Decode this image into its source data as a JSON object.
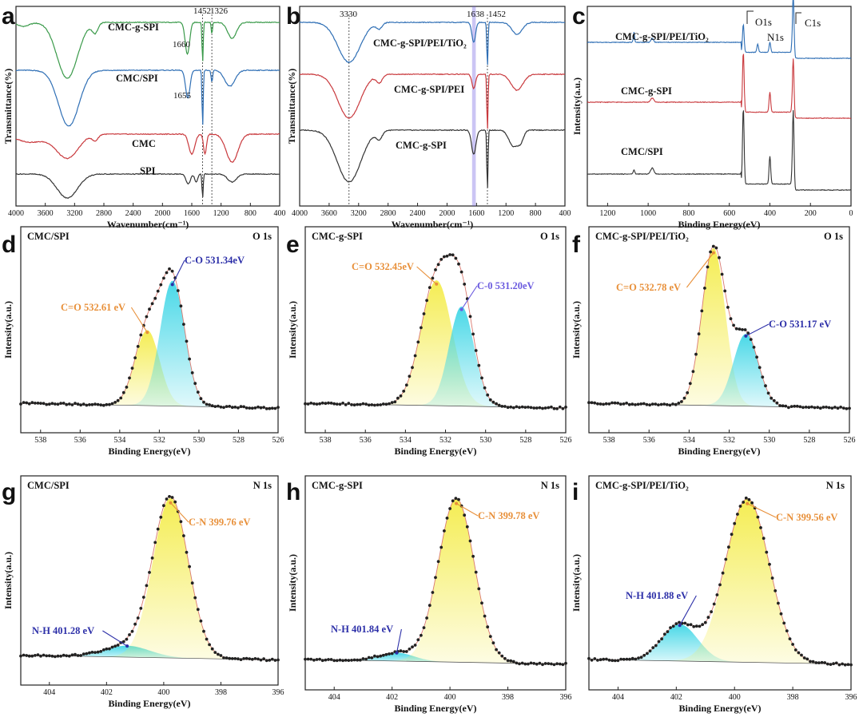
{
  "colors": {
    "green": "#3a9a4a",
    "blue": "#2f6fb5",
    "red": "#c9393d",
    "black": "#333333",
    "cyan": "#3fd6e6",
    "yellow": "#f4ec4a",
    "orange_text": "#e8903a",
    "blue_text": "#2c2fa8",
    "purple_band": "#6a5adf"
  },
  "chart_data": [
    {
      "panel": "a",
      "type": "line",
      "xlabel": "Wavenumber(cm⁻¹)",
      "ylabel": "Transmittance(%)",
      "xlim": [
        4000,
        400
      ],
      "xticks": [
        4000,
        3600,
        3200,
        2800,
        2400,
        2000,
        1600,
        1200,
        800,
        400
      ],
      "series": [
        {
          "name": "CMC-g-SPI",
          "color": "green",
          "base": 0.92
        },
        {
          "name": "CMC/SPI",
          "color": "blue",
          "base": 0.68
        },
        {
          "name": "CMC",
          "color": "red",
          "base": 0.36
        },
        {
          "name": "SPI",
          "color": "black",
          "base": 0.16
        }
      ],
      "vlines": [
        1452,
        1326
      ],
      "annotations": [
        {
          "text": "1452",
          "x": 1452
        },
        {
          "text": "1326",
          "x": 1326
        },
        {
          "text": "1660",
          "x": 1660
        },
        {
          "text": "1655",
          "x": 1655
        }
      ]
    },
    {
      "panel": "b",
      "type": "line",
      "xlabel": "Wavenumber(cm⁻¹)",
      "ylabel": "Transmittance(%)",
      "xlim": [
        4000,
        400
      ],
      "xticks": [
        4000,
        3600,
        3200,
        2800,
        2400,
        2000,
        1600,
        1200,
        800,
        400
      ],
      "series": [
        {
          "name": "CMC-g-SPI/PEI/TiO₂",
          "color": "blue",
          "base": 0.92
        },
        {
          "name": "CMC-g-SPI/PEI",
          "color": "red",
          "base": 0.66
        },
        {
          "name": "CMC-g-SPI",
          "color": "black",
          "base": 0.38
        }
      ],
      "vlines": [
        3330,
        1452
      ],
      "band": [
        1660,
        1610
      ],
      "annotations": [
        {
          "text": "3330",
          "x": 3330
        },
        {
          "text": "1638",
          "x": 1638
        },
        {
          "text": "1452",
          "x": 1452
        }
      ]
    },
    {
      "panel": "c",
      "type": "line",
      "xlabel": "Binding Energy(eV)",
      "ylabel": "Intensity(a.u.)",
      "xlim": [
        1300,
        0
      ],
      "xticks": [
        1200,
        1000,
        800,
        600,
        400,
        200,
        0
      ],
      "series": [
        {
          "name": "CMC-g-SPI/PEI/TiO₂",
          "color": "blue",
          "base": 0.82
        },
        {
          "name": "CMC-g-SPI",
          "color": "red",
          "base": 0.52
        },
        {
          "name": "CMC/SPI",
          "color": "black",
          "base": 0.16
        }
      ],
      "annotations": [
        {
          "text": "O1s",
          "x": 531
        },
        {
          "text": "N1s",
          "x": 400
        },
        {
          "text": "C1s",
          "x": 285
        }
      ]
    },
    {
      "panel": "d",
      "type": "line",
      "sample": "CMC/SPI",
      "core": "O 1s",
      "xlabel": "Binding Energy(eV)",
      "ylabel": "Intensity(a.u.)",
      "xlim": [
        539,
        526
      ],
      "xticks": [
        538,
        536,
        534,
        532,
        530,
        528,
        526
      ],
      "peaks": [
        {
          "label": "C=O 532.61 eV",
          "center": 532.61,
          "height": 0.47,
          "width": 0.62,
          "fill": "yellow",
          "color": "orange_text"
        },
        {
          "label": "C-O 531.34eV",
          "center": 531.34,
          "height": 0.78,
          "width": 0.62,
          "fill": "cyan",
          "color": "blue_text"
        }
      ]
    },
    {
      "panel": "e",
      "type": "line",
      "sample": "CMC-g-SPI",
      "core": "O 1s",
      "xlabel": "Binding Energy(eV)",
      "ylabel": "Intensity(a.u.)",
      "xlim": [
        539,
        526
      ],
      "xticks": [
        538,
        536,
        534,
        532,
        530,
        528,
        526
      ],
      "peaks": [
        {
          "label": "C=O 532.45eV",
          "center": 532.45,
          "height": 0.78,
          "width": 0.78,
          "fill": "yellow",
          "color": "orange_text"
        },
        {
          "label": "C-0 531.20eV",
          "center": 531.2,
          "height": 0.62,
          "width": 0.62,
          "fill": "cyan",
          "color": "purple_band"
        }
      ]
    },
    {
      "panel": "f",
      "type": "line",
      "sample": "CMC-g-SPI/PEI/TiO₂",
      "core": "O 1s",
      "xlabel": "Binding Energy(eV)",
      "ylabel": "Intensity(a.u.)",
      "xlim": [
        539,
        526
      ],
      "xticks": [
        538,
        536,
        534,
        532,
        530,
        528,
        526
      ],
      "peaks": [
        {
          "label": "C=O 532.78 eV",
          "center": 532.78,
          "height": 0.98,
          "width": 0.58,
          "fill": "yellow",
          "color": "orange_text"
        },
        {
          "label": "C-O 531.17 eV",
          "center": 531.17,
          "height": 0.45,
          "width": 0.62,
          "fill": "cyan",
          "color": "blue_text"
        }
      ]
    },
    {
      "panel": "g",
      "type": "line",
      "sample": "CMC/SPI",
      "core": "N 1s",
      "xlabel": "Binding Energy(eV)",
      "ylabel": "Intensity(a.u.)",
      "xlim": [
        405,
        396
      ],
      "xticks": [
        404,
        402,
        400,
        398,
        396
      ],
      "peaks": [
        {
          "label": "N-H 401.28 eV",
          "center": 401.28,
          "height": 0.07,
          "width": 0.8,
          "fill": "cyan",
          "color": "blue_text"
        },
        {
          "label": "C-N 399.76 eV",
          "center": 399.76,
          "height": 0.98,
          "width": 0.62,
          "fill": "yellow",
          "color": "orange_text"
        }
      ]
    },
    {
      "panel": "h",
      "type": "line",
      "sample": "CMC-g-SPI",
      "core": "N 1s",
      "xlabel": "Binding Energy(eV)",
      "ylabel": "Intensity(a.u.)",
      "xlim": [
        405,
        396
      ],
      "xticks": [
        404,
        402,
        400,
        398,
        396
      ],
      "peaks": [
        {
          "label": "N-H 401.84 eV",
          "center": 401.84,
          "height": 0.05,
          "width": 0.6,
          "fill": "cyan",
          "color": "blue_text"
        },
        {
          "label": "C-N 399.78 eV",
          "center": 399.78,
          "height": 0.98,
          "width": 0.62,
          "fill": "yellow",
          "color": "orange_text"
        }
      ]
    },
    {
      "panel": "i",
      "type": "line",
      "sample": "CMC-g-SPI/PEI/TiO₂",
      "core": "N 1s",
      "xlabel": "Binding Energy(eV)",
      "ylabel": "Intensity(a.u.)",
      "xlim": [
        405,
        396
      ],
      "xticks": [
        404,
        402,
        400,
        398,
        396
      ],
      "peaks": [
        {
          "label": "N-H 401.88 eV",
          "center": 401.88,
          "height": 0.22,
          "width": 0.62,
          "fill": "cyan",
          "color": "blue_text"
        },
        {
          "label": "C-N 399.56 eV",
          "center": 399.56,
          "height": 0.98,
          "width": 0.75,
          "fill": "yellow",
          "color": "orange_text"
        }
      ]
    }
  ]
}
